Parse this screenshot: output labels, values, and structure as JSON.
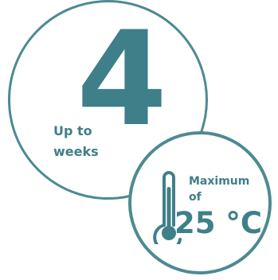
{
  "duration": {
    "number": "4",
    "label_line1": "Up to",
    "label_line2": "weeks"
  },
  "temperature": {
    "label_line1": "Maximum",
    "label_line2": "of",
    "value": "25 °C",
    "icon": "thermometer-icon"
  },
  "colors": {
    "accent": "#4d8a92",
    "text": "#3f7f89",
    "background": "#ffffff"
  }
}
